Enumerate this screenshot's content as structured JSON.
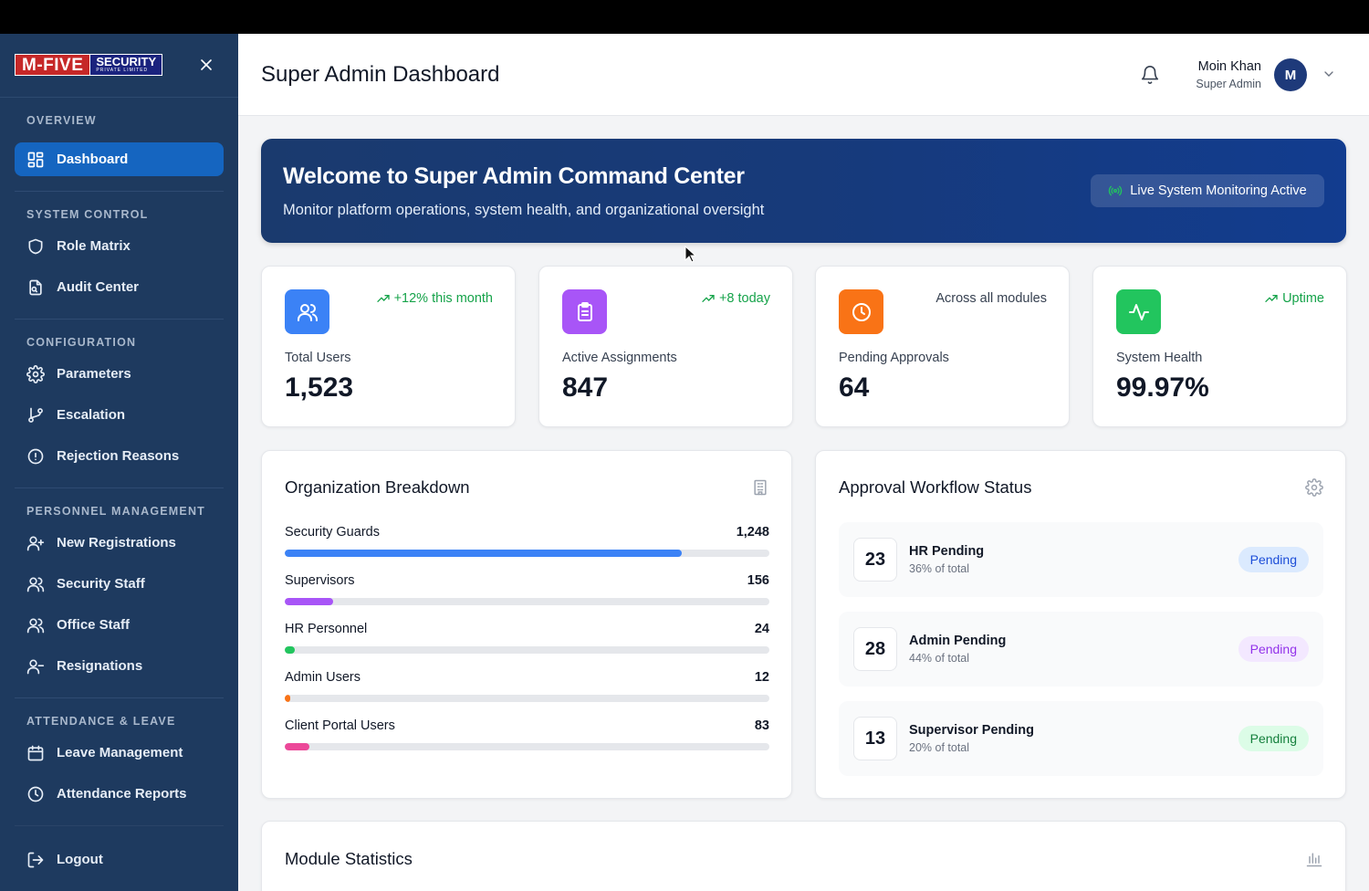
{
  "brand": {
    "logo_main": "M-FIVE",
    "logo_sub": "SECURITY",
    "logo_tag": "PRIVATE LIMITED"
  },
  "sidebar": {
    "sections": [
      {
        "title": "OVERVIEW",
        "items": [
          {
            "label": "Dashboard",
            "icon": "dashboard-icon",
            "active": true
          }
        ]
      },
      {
        "title": "SYSTEM CONTROL",
        "items": [
          {
            "label": "Role Matrix",
            "icon": "shield-icon"
          },
          {
            "label": "Audit Center",
            "icon": "audit-file-icon"
          }
        ]
      },
      {
        "title": "CONFIGURATION",
        "items": [
          {
            "label": "Parameters",
            "icon": "gear-icon"
          },
          {
            "label": "Escalation",
            "icon": "git-branch-icon"
          },
          {
            "label": "Rejection Reasons",
            "icon": "alert-circle-icon"
          }
        ]
      },
      {
        "title": "PERSONNEL MANAGEMENT",
        "items": [
          {
            "label": "New Registrations",
            "icon": "user-plus-icon"
          },
          {
            "label": "Security Staff",
            "icon": "users-icon"
          },
          {
            "label": "Office Staff",
            "icon": "users-icon"
          },
          {
            "label": "Resignations",
            "icon": "user-minus-icon"
          }
        ]
      },
      {
        "title": "ATTENDANCE & LEAVE",
        "items": [
          {
            "label": "Leave Management",
            "icon": "calendar-icon"
          },
          {
            "label": "Attendance Reports",
            "icon": "clock-icon"
          }
        ]
      }
    ],
    "logout": "Logout"
  },
  "header": {
    "title": "Super Admin Dashboard",
    "user_name": "Moin Khan",
    "user_role": "Super Admin",
    "avatar_initial": "M"
  },
  "welcome": {
    "title": "Welcome to Super Admin Command Center",
    "subtitle": "Monitor platform operations, system health, and organizational oversight",
    "status_button": "Live System Monitoring Active"
  },
  "stats": [
    {
      "label": "Total Users",
      "value": "1,523",
      "trend": "+12% this month",
      "icon": "users-icon",
      "color": "#3b82f6"
    },
    {
      "label": "Active Assignments",
      "value": "847",
      "trend": "+8 today",
      "icon": "clipboard-icon",
      "color": "#a855f7"
    },
    {
      "label": "Pending Approvals",
      "value": "64",
      "trend": "Across all modules",
      "icon": "clock-icon",
      "color": "#f97316"
    },
    {
      "label": "System Health",
      "value": "99.97%",
      "trend": "Uptime",
      "icon": "activity-icon",
      "color": "#22c55e"
    }
  ],
  "org_breakdown": {
    "title": "Organization Breakdown",
    "rows": [
      {
        "name": "Security Guards",
        "count": "1,248",
        "fraction": 0.82,
        "color": "#3b82f6"
      },
      {
        "name": "Supervisors",
        "count": "156",
        "fraction": 0.1,
        "color": "#a855f7"
      },
      {
        "name": "HR Personnel",
        "count": "24",
        "fraction": 0.02,
        "color": "#22c55e"
      },
      {
        "name": "Admin Users",
        "count": "12",
        "fraction": 0.01,
        "color": "#f97316"
      },
      {
        "name": "Client Portal Users",
        "count": "83",
        "fraction": 0.05,
        "color": "#ec4899"
      }
    ]
  },
  "workflow": {
    "title": "Approval Workflow Status",
    "rows": [
      {
        "count": "23",
        "name": "HR Pending",
        "pct": "36% of total",
        "badge": "Pending",
        "badge_bg": "#dbeafe",
        "badge_fg": "#1d4ed8"
      },
      {
        "count": "28",
        "name": "Admin Pending",
        "pct": "44% of total",
        "badge": "Pending",
        "badge_bg": "#f3e8ff",
        "badge_fg": "#9333ea"
      },
      {
        "count": "13",
        "name": "Supervisor Pending",
        "pct": "20% of total",
        "badge": "Pending",
        "badge_bg": "#dcfce7",
        "badge_fg": "#15803d"
      }
    ]
  },
  "module_stats": {
    "title": "Module Statistics"
  }
}
